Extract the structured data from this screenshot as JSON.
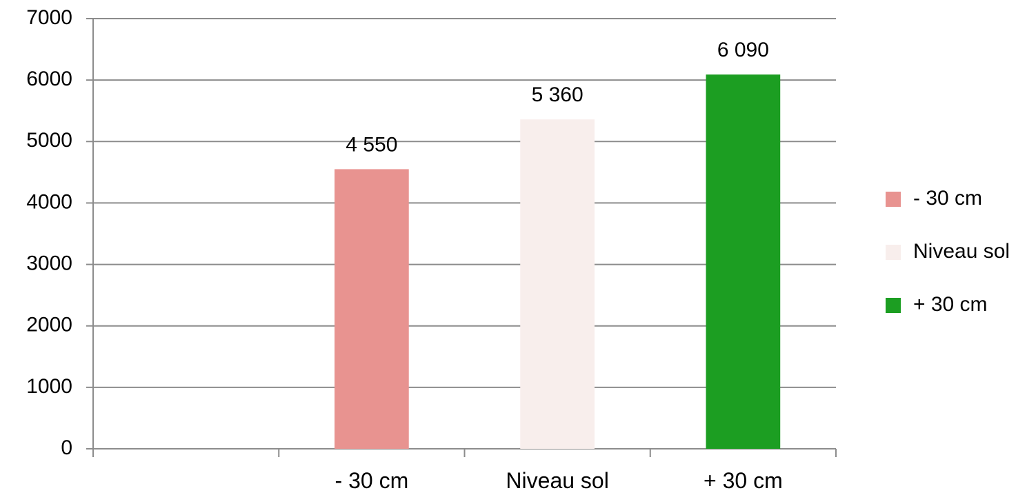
{
  "chart_data": {
    "type": "bar",
    "slots": [
      "",
      "- 30 cm",
      "Niveau sol",
      "+ 30 cm"
    ],
    "categories": [
      "- 30 cm",
      "Niveau sol",
      "+ 30 cm"
    ],
    "series": [
      {
        "name": "- 30 cm",
        "category": "- 30 cm",
        "value": 4550,
        "label": "4 550",
        "color": "#e89390"
      },
      {
        "name": "Niveau sol",
        "category": "Niveau sol",
        "value": 5360,
        "label": "5 360",
        "color": "#f8eeec"
      },
      {
        "name": "+ 30 cm",
        "category": "+ 30 cm",
        "value": 6090,
        "label": "6 090",
        "color": "#1c9e22"
      }
    ],
    "ylim": [
      0,
      7000
    ],
    "yticks": [
      0,
      1000,
      2000,
      3000,
      4000,
      5000,
      6000,
      7000
    ],
    "title": "",
    "xlabel": "",
    "ylabel": "",
    "grid": true,
    "legend": "right"
  }
}
